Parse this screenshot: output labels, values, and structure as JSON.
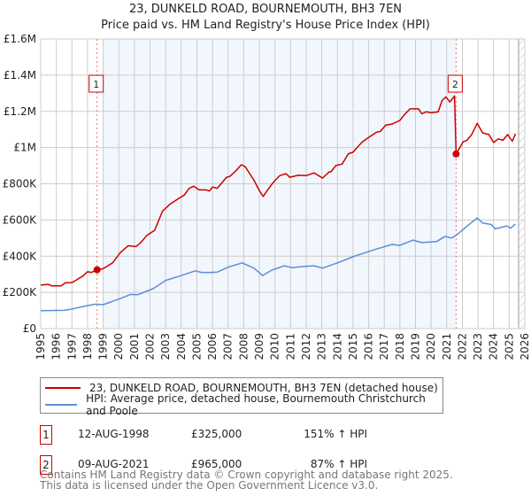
{
  "header": {
    "title": "23, DUNKELD ROAD, BOURNEMOUTH, BH3 7EN",
    "subtitle": "Price paid vs. HM Land Registry's House Price Index (HPI)"
  },
  "chart_data": {
    "type": "line",
    "title": "23, DUNKELD ROAD, BOURNEMOUTH, BH3 7EN",
    "xlim": [
      1995,
      2026
    ],
    "ylim": [
      0,
      1600000
    ],
    "y_ticks": [
      {
        "v": 0,
        "label": "£0"
      },
      {
        "v": 200000,
        "label": "£200K"
      },
      {
        "v": 400000,
        "label": "£400K"
      },
      {
        "v": 600000,
        "label": "£600K"
      },
      {
        "v": 800000,
        "label": "£800K"
      },
      {
        "v": 1000000,
        "label": "£1M"
      },
      {
        "v": 1200000,
        "label": "£1.2M"
      },
      {
        "v": 1400000,
        "label": "£1.4M"
      },
      {
        "v": 1600000,
        "label": "£1.6M"
      }
    ],
    "x_ticks": [
      "1995",
      "1996",
      "1997",
      "1998",
      "1999",
      "2000",
      "2001",
      "2002",
      "2003",
      "2004",
      "2005",
      "2006",
      "2007",
      "2008",
      "2009",
      "2010",
      "2011",
      "2012",
      "2013",
      "2014",
      "2015",
      "2016",
      "2017",
      "2018",
      "2019",
      "2020",
      "2021",
      "2022",
      "2023",
      "2024",
      "2025",
      "2026"
    ],
    "grid": true,
    "shaded_range": [
      1999,
      2021.6
    ],
    "forecast_hatch_from": 2025.6,
    "series": [
      {
        "name": "23, DUNKELD ROAD, BOURNEMOUTH, BH3 7EN (detached house)",
        "color": "#cc0000",
        "points": [
          [
            1995,
            241000
          ],
          [
            1995.5,
            244000
          ],
          [
            1995.7,
            236000
          ],
          [
            1996.3,
            236000
          ],
          [
            1996.6,
            254000
          ],
          [
            1997,
            254000
          ],
          [
            1997.7,
            290000
          ],
          [
            1998,
            314000
          ],
          [
            1998.25,
            310000
          ],
          [
            1998.61,
            325000
          ],
          [
            1999,
            331000
          ],
          [
            1999.6,
            363000
          ],
          [
            2000.1,
            420000
          ],
          [
            2000.6,
            458000
          ],
          [
            2001.1,
            453000
          ],
          [
            2001.4,
            474000
          ],
          [
            2001.8,
            515000
          ],
          [
            2002.3,
            543000
          ],
          [
            2002.8,
            649000
          ],
          [
            2003.3,
            689000
          ],
          [
            2003.9,
            722000
          ],
          [
            2004.2,
            738000
          ],
          [
            2004.5,
            774000
          ],
          [
            2004.8,
            787000
          ],
          [
            2005.15,
            766000
          ],
          [
            2005.6,
            766000
          ],
          [
            2005.8,
            760000
          ],
          [
            2006,
            782000
          ],
          [
            2006.3,
            775000
          ],
          [
            2006.55,
            800000
          ],
          [
            2006.9,
            836000
          ],
          [
            2007.1,
            840000
          ],
          [
            2007.5,
            872000
          ],
          [
            2007.85,
            905000
          ],
          [
            2008.1,
            894000
          ],
          [
            2008.65,
            820000
          ],
          [
            2009,
            763000
          ],
          [
            2009.25,
            730000
          ],
          [
            2009.5,
            763000
          ],
          [
            2009.85,
            803000
          ],
          [
            2010.3,
            845000
          ],
          [
            2010.7,
            856000
          ],
          [
            2010.95,
            836000
          ],
          [
            2011.5,
            847000
          ],
          [
            2012,
            845000
          ],
          [
            2012.5,
            860000
          ],
          [
            2013.05,
            832000
          ],
          [
            2013.45,
            864000
          ],
          [
            2013.6,
            868000
          ],
          [
            2013.9,
            901000
          ],
          [
            2014.3,
            909000
          ],
          [
            2014.7,
            966000
          ],
          [
            2015,
            974000
          ],
          [
            2015.25,
            999000
          ],
          [
            2015.6,
            1032000
          ],
          [
            2016,
            1056000
          ],
          [
            2016.5,
            1085000
          ],
          [
            2016.75,
            1089000
          ],
          [
            2017.1,
            1125000
          ],
          [
            2017.5,
            1130000
          ],
          [
            2018,
            1150000
          ],
          [
            2018.25,
            1178000
          ],
          [
            2018.65,
            1214000
          ],
          [
            2019.2,
            1214000
          ],
          [
            2019.4,
            1187000
          ],
          [
            2019.7,
            1198000
          ],
          [
            2020,
            1192000
          ],
          [
            2020.45,
            1198000
          ],
          [
            2020.7,
            1260000
          ],
          [
            2020.95,
            1280000
          ],
          [
            2021.2,
            1252000
          ],
          [
            2021.5,
            1285000
          ],
          [
            2021.6,
            965000
          ],
          [
            2022.05,
            1032000
          ],
          [
            2022.3,
            1040000
          ],
          [
            2022.6,
            1072000
          ],
          [
            2022.95,
            1134000
          ],
          [
            2023.3,
            1081000
          ],
          [
            2023.7,
            1072000
          ],
          [
            2024,
            1028000
          ],
          [
            2024.3,
            1048000
          ],
          [
            2024.6,
            1040000
          ],
          [
            2024.9,
            1072000
          ],
          [
            2025.2,
            1035000
          ],
          [
            2025.4,
            1076000
          ]
        ]
      },
      {
        "name": "HPI: Average price, detached house, Bournemouth Christchurch and Poole",
        "color": "#5b8fd6",
        "points": [
          [
            1995,
            99000
          ],
          [
            1996.5,
            101000
          ],
          [
            1997,
            108000
          ],
          [
            1998,
            127000
          ],
          [
            1998.5,
            135000
          ],
          [
            1999,
            132000
          ],
          [
            2000.15,
            168000
          ],
          [
            2000.75,
            189000
          ],
          [
            2001.2,
            187000
          ],
          [
            2002.2,
            220000
          ],
          [
            2003,
            266000
          ],
          [
            2003.9,
            290000
          ],
          [
            2004.9,
            319000
          ],
          [
            2005.3,
            310000
          ],
          [
            2005.85,
            310000
          ],
          [
            2006.3,
            312000
          ],
          [
            2007,
            339000
          ],
          [
            2007.9,
            363000
          ],
          [
            2008.65,
            334000
          ],
          [
            2009.2,
            293000
          ],
          [
            2009.8,
            323000
          ],
          [
            2010.6,
            347000
          ],
          [
            2011.1,
            336000
          ],
          [
            2011.75,
            343000
          ],
          [
            2012.5,
            347000
          ],
          [
            2013.05,
            334000
          ],
          [
            2014,
            363000
          ],
          [
            2015.05,
            399000
          ],
          [
            2016.4,
            437000
          ],
          [
            2017.5,
            465000
          ],
          [
            2018,
            460000
          ],
          [
            2018.85,
            489000
          ],
          [
            2019.4,
            475000
          ],
          [
            2020.35,
            481000
          ],
          [
            2020.9,
            510000
          ],
          [
            2021.3,
            500000
          ],
          [
            2021.65,
            518000
          ],
          [
            2022.2,
            559000
          ],
          [
            2022.95,
            611000
          ],
          [
            2023.3,
            583000
          ],
          [
            2023.85,
            575000
          ],
          [
            2024.1,
            551000
          ],
          [
            2024.85,
            567000
          ],
          [
            2025.1,
            555000
          ],
          [
            2025.4,
            578000
          ]
        ]
      }
    ],
    "sales": [
      {
        "label": "1",
        "x": 1998.61,
        "y": 325000
      },
      {
        "label": "2",
        "x": 2021.6,
        "y": 965000
      }
    ]
  },
  "legend": {
    "items": [
      {
        "label": "23, DUNKELD ROAD, BOURNEMOUTH, BH3 7EN (detached house)",
        "color": "#cc0000"
      },
      {
        "label": "HPI: Average price, detached house, Bournemouth Christchurch and Poole",
        "color": "#5b8fd6"
      }
    ]
  },
  "transactions": [
    {
      "num": "1",
      "date": "12-AUG-1998",
      "price": "£325,000",
      "hpi": "151% ↑ HPI"
    },
    {
      "num": "2",
      "date": "09-AUG-2021",
      "price": "£965,000",
      "hpi": "87% ↑ HPI"
    }
  ],
  "footer": {
    "line1": "Contains HM Land Registry data © Crown copyright and database right 2025.",
    "line2": "This data is licensed under the Open Government Licence v3.0."
  }
}
